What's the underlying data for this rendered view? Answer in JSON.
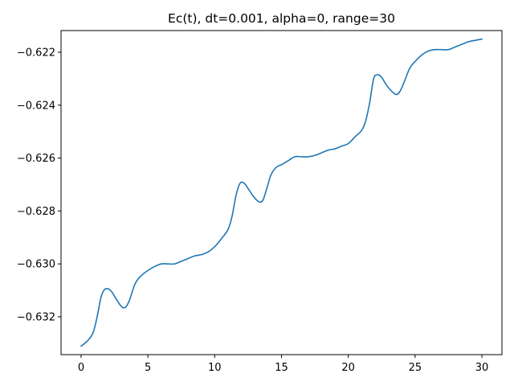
{
  "chart_data": {
    "type": "line",
    "title": "Ec(t), dt=0.001, alpha=0, range=30",
    "xlabel": "",
    "ylabel": "",
    "xlim": [
      -1.5,
      31.5
    ],
    "ylim": [
      -0.63343,
      -0.62118
    ],
    "x_ticks": [
      0,
      5,
      10,
      15,
      20,
      25,
      30
    ],
    "x_tick_labels": [
      "0",
      "5",
      "10",
      "15",
      "20",
      "25",
      "30"
    ],
    "y_ticks": [
      -0.632,
      -0.63,
      -0.628,
      -0.626,
      -0.624,
      -0.622
    ],
    "y_tick_labels": [
      "−0.632",
      "−0.630",
      "−0.628",
      "−0.626",
      "−0.624",
      "−0.622"
    ],
    "grid": false,
    "line_color": "#1f77b4",
    "series": [
      {
        "x": [
          0,
          0.5,
          0.9,
          1.2,
          1.5,
          1.8,
          2.2,
          2.6,
          3.0,
          3.3,
          3.6,
          4.0,
          4.3,
          4.6,
          5.0,
          5.5,
          6.0,
          6.5,
          7.0,
          7.5,
          8.0,
          8.5,
          9.0,
          9.5,
          10.0,
          10.5,
          11.0,
          11.3,
          11.6,
          11.9,
          12.2,
          12.5,
          12.9,
          13.3,
          13.6,
          13.9,
          14.2,
          14.6,
          15.0,
          15.5,
          16.0,
          16.5,
          17.0,
          17.5,
          18.0,
          18.5,
          19.0,
          19.5,
          20.0,
          20.5,
          21.0,
          21.3,
          21.6,
          21.9,
          22.2,
          22.5,
          22.8,
          23.2,
          23.6,
          23.9,
          24.2,
          24.6,
          25.0,
          25.5,
          26.0,
          26.5,
          27.0,
          27.5,
          28.0,
          28.5,
          29.0,
          29.5,
          30.0
        ],
        "values": [
          -0.63311,
          -0.6329,
          -0.6326,
          -0.632,
          -0.63125,
          -0.63095,
          -0.631,
          -0.6313,
          -0.6316,
          -0.63165,
          -0.6314,
          -0.6308,
          -0.63055,
          -0.6304,
          -0.63025,
          -0.6301,
          -0.63,
          -0.63,
          -0.63,
          -0.6299,
          -0.6298,
          -0.6297,
          -0.62965,
          -0.62955,
          -0.62935,
          -0.62905,
          -0.6287,
          -0.6282,
          -0.6274,
          -0.62695,
          -0.62695,
          -0.62715,
          -0.62745,
          -0.62765,
          -0.6276,
          -0.62715,
          -0.62665,
          -0.62635,
          -0.62625,
          -0.6261,
          -0.62595,
          -0.62595,
          -0.62595,
          -0.6259,
          -0.6258,
          -0.6257,
          -0.62565,
          -0.62555,
          -0.62545,
          -0.6252,
          -0.62495,
          -0.6246,
          -0.6239,
          -0.623,
          -0.62285,
          -0.62295,
          -0.6232,
          -0.62345,
          -0.6236,
          -0.62345,
          -0.6231,
          -0.6226,
          -0.62235,
          -0.6221,
          -0.62195,
          -0.6219,
          -0.6219,
          -0.6219,
          -0.6218,
          -0.6217,
          -0.6216,
          -0.62155,
          -0.6215
        ]
      }
    ]
  }
}
